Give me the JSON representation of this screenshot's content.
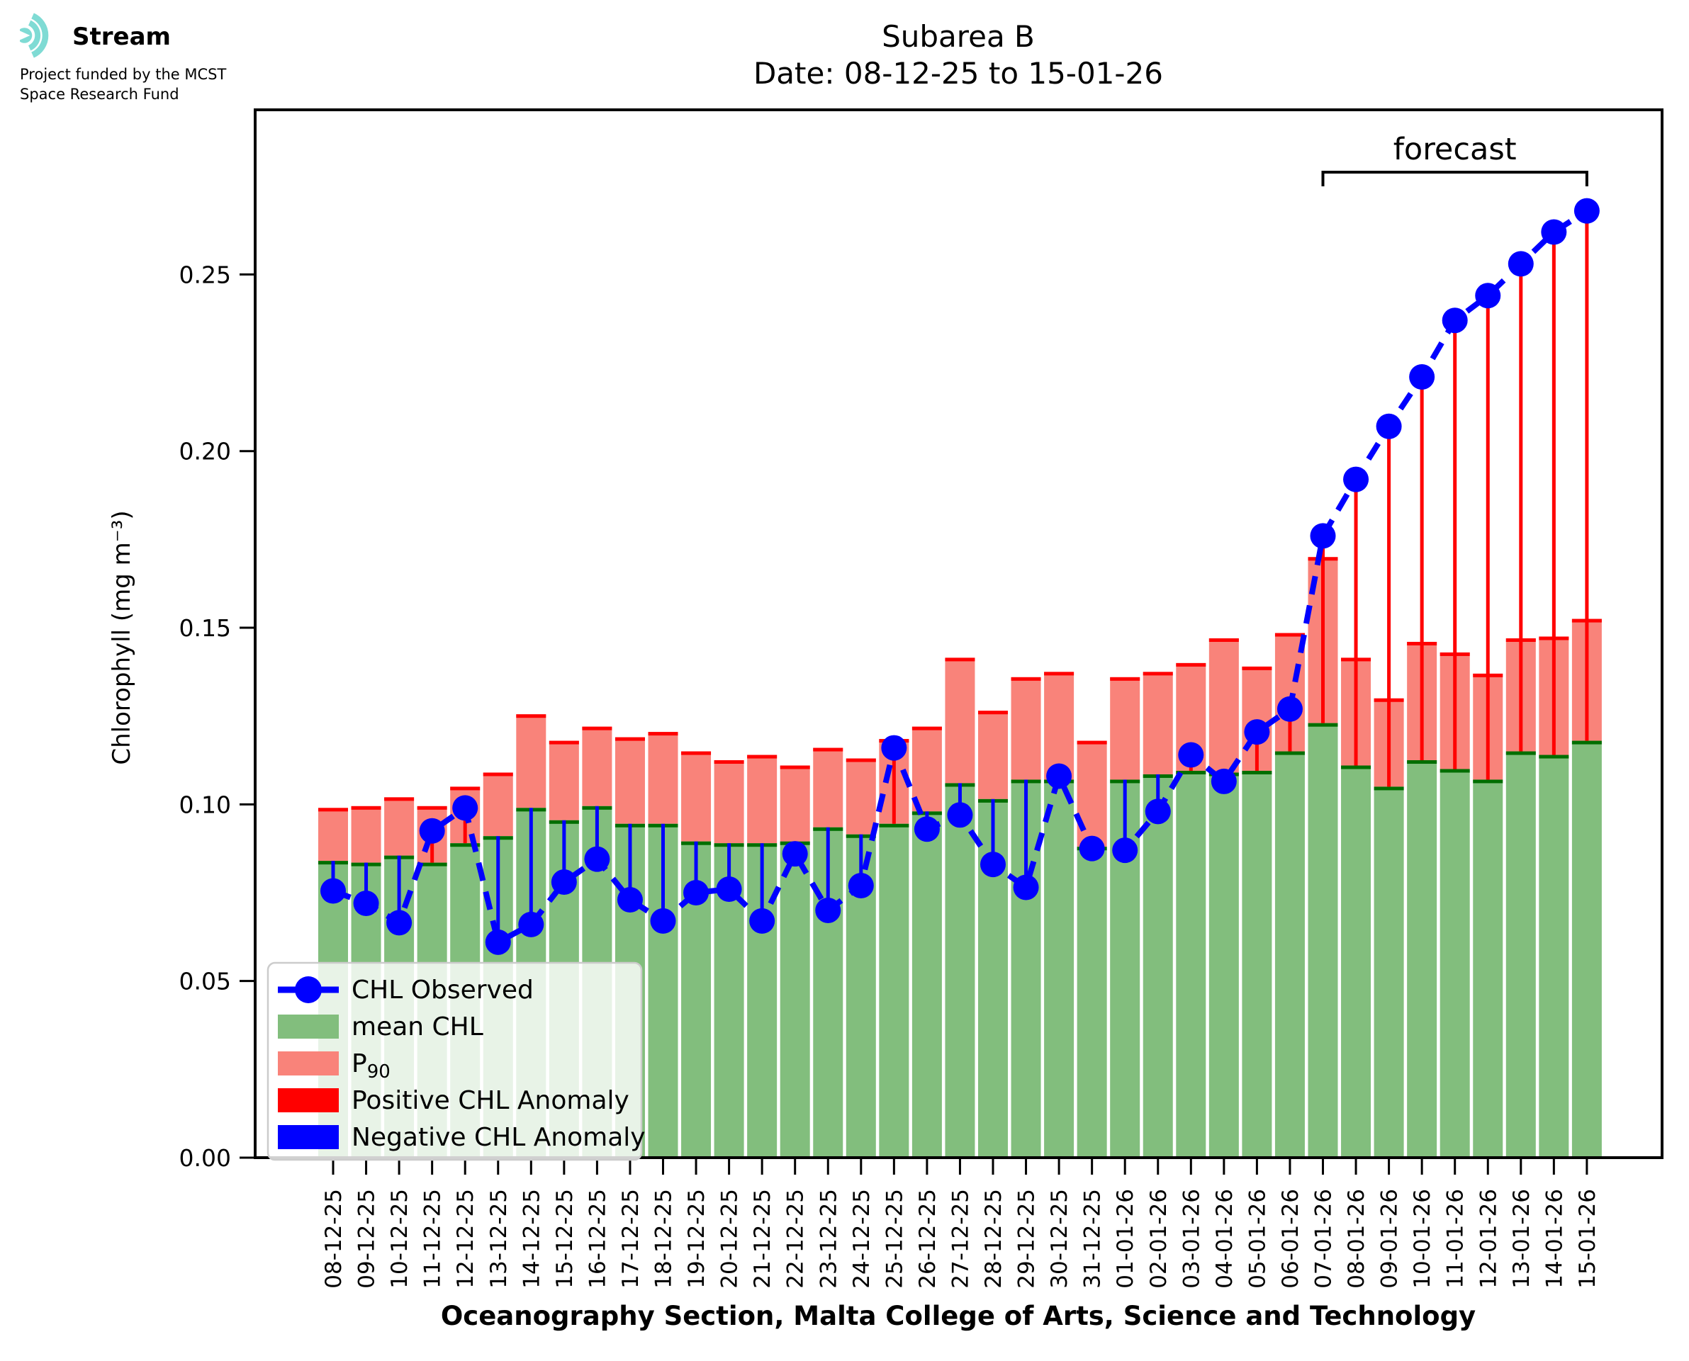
{
  "logo": {
    "brand": "Stream",
    "subtitle_line1": "Project funded by the MCST",
    "subtitle_line2": "Space Research Fund",
    "icon": "ripple-waves-icon",
    "icon_color": "#7fdbd4"
  },
  "title": {
    "line1": "Subarea B",
    "line2": "Date: 08-12-25 to 15-01-26"
  },
  "forecast": {
    "label": "forecast",
    "start_category": "07-01-26",
    "end_category": "15-01-26"
  },
  "axes": {
    "ylabel": "Chlorophyll (mg m⁻³)",
    "xlabel": "Oceanography Section, Malta College of Arts, Science and Technology",
    "ytick_labels": [
      "0.00",
      "0.05",
      "0.10",
      "0.15",
      "0.20",
      "0.25"
    ],
    "ytick_values": [
      0,
      0.05,
      0.1,
      0.15,
      0.2,
      0.25
    ]
  },
  "legend": {
    "position": "lower left",
    "items": [
      {
        "label": "CHL Observed",
        "swatch": "marker-line",
        "color": "#0000ff"
      },
      {
        "label": "mean CHL",
        "swatch": "patch",
        "color": "#82be7d"
      },
      {
        "label": "P",
        "label_sub": "90",
        "swatch": "patch",
        "color": "#f9837a"
      },
      {
        "label": "Positive CHL Anomaly",
        "swatch": "patch",
        "color": "#ff0000"
      },
      {
        "label": "Negative CHL Anomaly",
        "swatch": "patch",
        "color": "#0000ff"
      }
    ]
  },
  "colors": {
    "mean_fill": "#82be7d",
    "mean_edge": "#006e00",
    "p90_fill": "#f9837a",
    "p90_edge": "#ff0000",
    "observed": "#0000ff",
    "positive_anomaly": "#ff0000",
    "negative_anomaly": "#0000ff",
    "frame": "#000000"
  },
  "chart_data": {
    "type": "bar",
    "title": "Subarea B",
    "subtitle": "Date: 08-12-25 to 15-01-26",
    "xlabel": "Oceanography Section, Malta College of Arts, Science and Technology",
    "ylabel": "Chlorophyll (mg m⁻³)",
    "ylim": [
      0,
      0.2966
    ],
    "grid": false,
    "legend_position": "lower left",
    "categories": [
      "08-12-25",
      "09-12-25",
      "10-12-25",
      "11-12-25",
      "12-12-25",
      "13-12-25",
      "14-12-25",
      "15-12-25",
      "16-12-25",
      "17-12-25",
      "18-12-25",
      "19-12-25",
      "20-12-25",
      "21-12-25",
      "22-12-25",
      "23-12-25",
      "24-12-25",
      "25-12-25",
      "26-12-25",
      "27-12-25",
      "28-12-25",
      "29-12-25",
      "30-12-25",
      "31-12-25",
      "01-01-26",
      "02-01-26",
      "03-01-26",
      "04-01-26",
      "05-01-26",
      "06-01-26",
      "07-01-26",
      "08-01-26",
      "09-01-26",
      "10-01-26",
      "11-01-26",
      "12-01-26",
      "13-01-26",
      "14-01-26",
      "15-01-26"
    ],
    "series": [
      {
        "name": "mean CHL",
        "type": "bar",
        "values": [
          0.084,
          0.0835,
          0.0855,
          0.0835,
          0.089,
          0.091,
          0.099,
          0.0955,
          0.0995,
          0.0945,
          0.0945,
          0.0895,
          0.089,
          0.089,
          0.0895,
          0.0935,
          0.0915,
          0.0945,
          0.098,
          0.106,
          0.1015,
          0.107,
          0.107,
          0.088,
          0.107,
          0.1085,
          0.1095,
          0.109,
          0.1095,
          0.115,
          0.123,
          0.111,
          0.105,
          0.1125,
          0.11,
          0.107,
          0.115,
          0.114,
          0.118
        ]
      },
      {
        "name": "P90",
        "type": "bar",
        "values": [
          0.099,
          0.0995,
          0.102,
          0.0995,
          0.105,
          0.109,
          0.1255,
          0.118,
          0.122,
          0.119,
          0.1205,
          0.115,
          0.1125,
          0.114,
          0.111,
          0.116,
          0.113,
          0.1185,
          0.122,
          0.1415,
          0.1265,
          0.136,
          0.1375,
          0.118,
          0.136,
          0.1375,
          0.14,
          0.147,
          0.139,
          0.1485,
          0.17,
          0.1415,
          0.13,
          0.146,
          0.143,
          0.137,
          0.147,
          0.1475,
          0.1525
        ]
      },
      {
        "name": "CHL Observed",
        "type": "line",
        "values": [
          0.0755,
          0.072,
          0.0665,
          0.0925,
          0.099,
          0.061,
          0.066,
          0.078,
          0.0845,
          0.073,
          0.067,
          0.075,
          0.076,
          0.067,
          0.086,
          0.07,
          0.077,
          0.116,
          0.093,
          0.097,
          0.083,
          0.0765,
          0.108,
          0.0875,
          0.087,
          0.098,
          0.114,
          0.1065,
          0.1205,
          0.127,
          0.176,
          0.192,
          0.207,
          0.221,
          0.237,
          0.244,
          0.253,
          0.262,
          0.268
        ]
      }
    ],
    "annotations": [
      {
        "text": "forecast",
        "type": "bracket",
        "from_category": "07-01-26",
        "to_category": "15-01-26"
      }
    ]
  }
}
